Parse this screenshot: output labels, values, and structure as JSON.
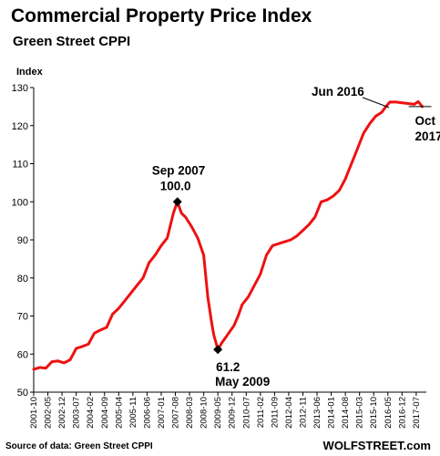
{
  "title": "Commercial Property Price Index",
  "subtitle": "Green Street CPPI",
  "source": "Source of data: Green Street CPPI",
  "brand": "WOLFSTREET.com",
  "colors": {
    "line": "#ee1111",
    "marker": "#000000",
    "axis": "#000000",
    "grid": "#e6e6e6"
  },
  "chart_data": {
    "type": "line",
    "title": "Commercial Property Price Index",
    "subtitle": "Green Street CPPI",
    "ylabel": "Index",
    "xlabel": "",
    "ylim": [
      50,
      130
    ],
    "yticks": [
      50,
      60,
      70,
      80,
      90,
      100,
      110,
      120,
      130
    ],
    "grid": false,
    "xtick_labels": [
      "2001-10",
      "2002-05",
      "2002-12",
      "2003-07",
      "2004-02",
      "2004-09",
      "2005-04",
      "2005-11",
      "2006-06",
      "2007-01",
      "2007-08",
      "2008-03",
      "2008-10",
      "2009-05",
      "2009-12",
      "2010-07",
      "2011-02",
      "2011-09",
      "2012-04",
      "2012-11",
      "2013-06",
      "2014-01",
      "2014-08",
      "2015-03",
      "2015-10",
      "2016-05",
      "2016-12",
      "2017-07"
    ],
    "series": [
      {
        "values": [
          [
            "2001-10",
            56.0
          ],
          [
            "2002-01",
            56.5
          ],
          [
            "2002-04",
            56.3
          ],
          [
            "2002-07",
            58.0
          ],
          [
            "2002-10",
            58.2
          ],
          [
            "2003-01",
            57.7
          ],
          [
            "2003-04",
            58.5
          ],
          [
            "2003-07",
            61.5
          ],
          [
            "2003-10",
            62.0
          ],
          [
            "2004-01",
            62.6
          ],
          [
            "2004-04",
            65.5
          ],
          [
            "2004-07",
            66.3
          ],
          [
            "2004-10",
            67.0
          ],
          [
            "2005-01",
            70.5
          ],
          [
            "2005-04",
            72.0
          ],
          [
            "2005-07",
            74.0
          ],
          [
            "2005-10",
            76.0
          ],
          [
            "2006-01",
            78.0
          ],
          [
            "2006-04",
            80.0
          ],
          [
            "2006-07",
            84.0
          ],
          [
            "2006-10",
            86.0
          ],
          [
            "2007-01",
            88.5
          ],
          [
            "2007-04",
            90.5
          ],
          [
            "2007-07",
            97.0
          ],
          [
            "2007-09",
            100.0
          ],
          [
            "2007-11",
            97.0
          ],
          [
            "2008-01",
            96.0
          ],
          [
            "2008-04",
            93.5
          ],
          [
            "2008-07",
            90.5
          ],
          [
            "2008-10",
            86.0
          ],
          [
            "2008-12",
            75.0
          ],
          [
            "2009-02",
            68.0
          ],
          [
            "2009-03",
            65.0
          ],
          [
            "2009-05",
            61.2
          ],
          [
            "2009-07",
            63.0
          ],
          [
            "2009-09",
            64.5
          ],
          [
            "2009-11",
            66.0
          ],
          [
            "2010-01",
            67.5
          ],
          [
            "2010-03",
            70.0
          ],
          [
            "2010-05",
            73.0
          ],
          [
            "2010-08",
            75.0
          ],
          [
            "2010-11",
            78.0
          ],
          [
            "2011-02",
            81.0
          ],
          [
            "2011-05",
            86.0
          ],
          [
            "2011-08",
            88.5
          ],
          [
            "2011-11",
            89.0
          ],
          [
            "2012-02",
            89.5
          ],
          [
            "2012-05",
            90.0
          ],
          [
            "2012-08",
            91.0
          ],
          [
            "2012-11",
            92.5
          ],
          [
            "2013-02",
            94.0
          ],
          [
            "2013-05",
            96.0
          ],
          [
            "2013-08",
            100.0
          ],
          [
            "2013-11",
            100.5
          ],
          [
            "2014-02",
            101.5
          ],
          [
            "2014-05",
            103.0
          ],
          [
            "2014-08",
            106.0
          ],
          [
            "2014-11",
            110.0
          ],
          [
            "2015-02",
            114.0
          ],
          [
            "2015-05",
            118.0
          ],
          [
            "2015-08",
            120.5
          ],
          [
            "2015-11",
            122.5
          ],
          [
            "2016-02",
            123.5
          ],
          [
            "2016-04",
            125.0
          ],
          [
            "2016-06",
            126.2
          ],
          [
            "2016-09",
            126.2
          ],
          [
            "2016-12",
            126.0
          ],
          [
            "2017-03",
            125.8
          ],
          [
            "2017-06",
            125.6
          ],
          [
            "2017-08",
            126.3
          ],
          [
            "2017-10",
            125.0
          ]
        ]
      }
    ],
    "annotations": [
      {
        "label": "Sep 2007",
        "value_label": "100.0",
        "x": "2007-09",
        "y": 100.0,
        "marker": true
      },
      {
        "label": "May 2009",
        "value_label": "61.2",
        "x": "2009-05",
        "y": 61.2,
        "marker": true
      },
      {
        "label": "Jun 2016",
        "x": "2016-06",
        "y": 126.2,
        "marker": false
      },
      {
        "label": "Oct",
        "label2": "2017",
        "x": "2017-10",
        "y": 125.0,
        "marker": false
      }
    ]
  }
}
